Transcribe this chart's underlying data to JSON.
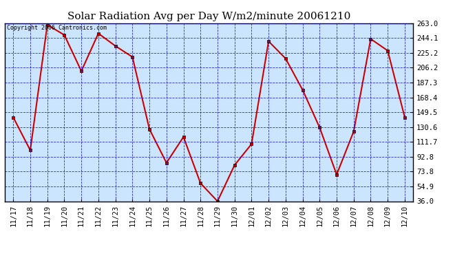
{
  "title": "Solar Radiation Avg per Day W/m2/minute 20061210",
  "copyright_text": "Copyright 2006 Cantronics.com",
  "x_labels": [
    "11/17",
    "11/18",
    "11/19",
    "11/20",
    "11/21",
    "11/22",
    "11/23",
    "11/24",
    "11/25",
    "11/26",
    "11/27",
    "11/28",
    "11/29",
    "11/30",
    "12/01",
    "12/02",
    "12/03",
    "12/04",
    "12/05",
    "12/06",
    "12/07",
    "12/08",
    "12/09",
    "12/10"
  ],
  "y_values": [
    143.0,
    101.0,
    261.0,
    248.0,
    202.0,
    250.0,
    234.0,
    220.0,
    128.0,
    85.0,
    118.0,
    59.0,
    36.0,
    82.0,
    109.0,
    240.0,
    218.0,
    178.0,
    130.0,
    70.0,
    125.0,
    243.0,
    228.0,
    143.0
  ],
  "y_min": 36.0,
  "y_max": 263.0,
  "y_ticks": [
    36.0,
    54.9,
    73.8,
    92.8,
    111.7,
    130.6,
    149.5,
    168.4,
    187.3,
    206.2,
    225.2,
    244.1,
    263.0
  ],
  "line_color": "#cc0000",
  "marker_color": "#cc0000",
  "background_color": "#cce5ff",
  "grid_color": "#0000bb",
  "title_fontsize": 11,
  "copyright_fontsize": 6,
  "tick_fontsize": 7.5
}
